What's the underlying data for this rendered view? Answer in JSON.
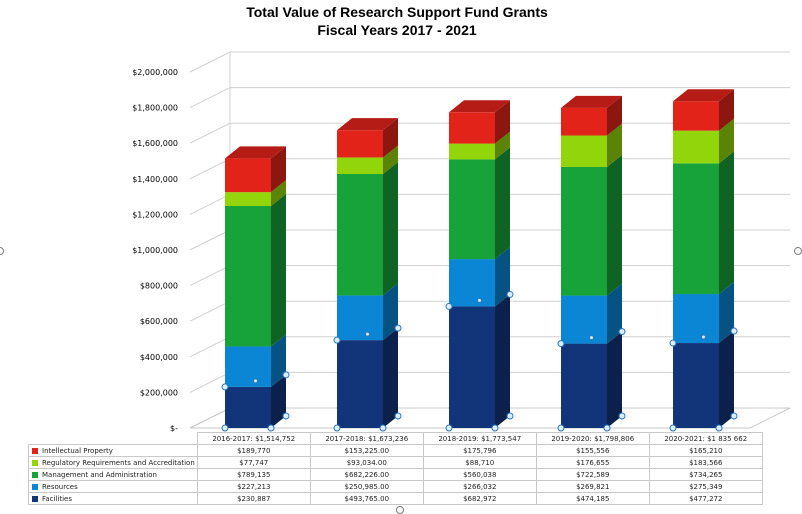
{
  "chart_data": {
    "type": "bar",
    "stacked": true,
    "three_d": true,
    "title": "Total Value of Research Support Fund Grants",
    "subtitle": "Fiscal Years 2017 - 2021",
    "categories": [
      "2016-2017: $1,514,752",
      "2017-2018: $1,673,236",
      "2018-2019: $1,773,547",
      "2019-2020: $1,798,806",
      "2020-2021: $1 835 662"
    ],
    "series": [
      {
        "name": "Facilities",
        "color": "#12357a",
        "values": [
          230887,
          493765,
          682972,
          474185,
          477272
        ],
        "labels": [
          "$230,887",
          "$493,765.00",
          "$682,972",
          "$474,185",
          "$477,272"
        ]
      },
      {
        "name": "Resources",
        "color": "#0a86d4",
        "values": [
          227213,
          250985,
          266032,
          269821,
          275349
        ],
        "labels": [
          "$227,213",
          "$250,985.00",
          "$266,032",
          "$269,821",
          "$275,349"
        ]
      },
      {
        "name": "Management and Administration",
        "color": "#18a23a",
        "values": [
          789135,
          682226,
          560038,
          722589,
          734265
        ],
        "labels": [
          "$789,135",
          "$682,226.00",
          "$560,038",
          "$722,589",
          "$734,265"
        ]
      },
      {
        "name": "Regulatory Requirements and Accreditation",
        "color": "#92d50a",
        "values": [
          77747,
          93034,
          88710,
          176655,
          183566
        ],
        "labels": [
          "$77,747",
          "$93,034.00",
          "$88,710",
          "$176,655",
          "$183,566"
        ]
      },
      {
        "name": "Intellectual Property",
        "color": "#e2231a",
        "values": [
          189770,
          153225,
          175796,
          155556,
          165210
        ],
        "labels": [
          "$189,770",
          "$153,225.00",
          "$175,796",
          "$155,556",
          "$165,210"
        ]
      }
    ],
    "ylim": [
      0,
      2000000
    ],
    "yticks": [
      0,
      200000,
      400000,
      600000,
      800000,
      1000000,
      1200000,
      1400000,
      1600000,
      1800000,
      2000000
    ],
    "ytick_labels": [
      "$-",
      "$200,000",
      "$400,000",
      "$600,000",
      "$800,000",
      "$1,000,000",
      "$1,200,000",
      "$1,400,000",
      "$1,600,000",
      "$1,800,000",
      "$2,000,000"
    ],
    "grid": true,
    "legend": "data-table"
  }
}
